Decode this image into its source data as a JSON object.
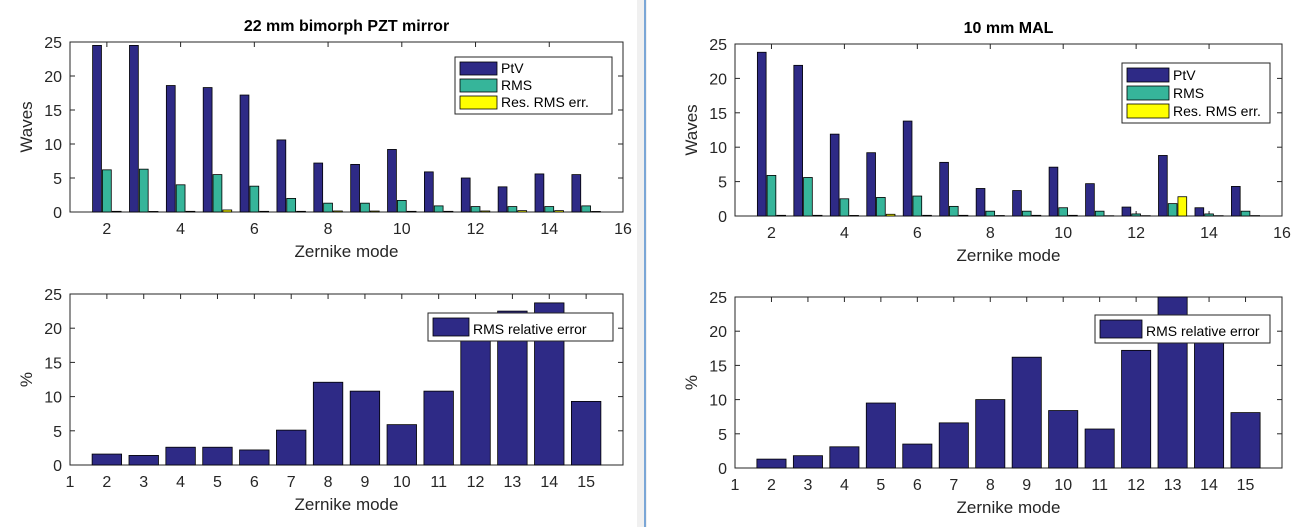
{
  "colors": {
    "ptv": "#2e2a86",
    "rms": "#36b59a",
    "res": "#ffff00",
    "rel": "#2e2a86"
  },
  "chart_data": [
    {
      "id": "left-top",
      "type": "bar",
      "title": "22 mm bimorph PZT mirror",
      "xlabel": "Zernike mode",
      "ylabel": "Waves",
      "xlim": [
        1,
        16
      ],
      "ylim": [
        0,
        25
      ],
      "xticks": [
        "2",
        "4",
        "6",
        "8",
        "10",
        "12",
        "14",
        "16"
      ],
      "yticks": [
        "0",
        "5",
        "10",
        "15",
        "20",
        "25"
      ],
      "legend_position": "top-right",
      "x": [
        2,
        3,
        4,
        5,
        6,
        7,
        8,
        9,
        10,
        11,
        12,
        13,
        14,
        15
      ],
      "series": [
        {
          "name": "PtV",
          "values": [
            24.5,
            24.5,
            18.6,
            18.3,
            17.2,
            10.6,
            7.2,
            7.0,
            9.2,
            5.9,
            5.0,
            3.7,
            5.6,
            5.5
          ]
        },
        {
          "name": "RMS",
          "values": [
            6.2,
            6.3,
            4.0,
            5.5,
            3.8,
            2.0,
            1.3,
            1.3,
            1.7,
            0.9,
            0.8,
            0.8,
            0.8,
            0.9
          ]
        },
        {
          "name": "Res. RMS err.",
          "values": [
            0.1,
            0.08,
            0.1,
            0.3,
            0.1,
            0.1,
            0.15,
            0.14,
            0.1,
            0.1,
            0.15,
            0.2,
            0.2,
            0.08
          ]
        }
      ]
    },
    {
      "id": "left-bottom",
      "type": "bar",
      "title": "",
      "xlabel": "Zernike mode",
      "ylabel": "%",
      "xlim": [
        1,
        16
      ],
      "ylim": [
        0,
        25
      ],
      "xticks": [
        "1",
        "2",
        "3",
        "4",
        "5",
        "6",
        "7",
        "8",
        "9",
        "10",
        "11",
        "12",
        "13",
        "14",
        "15"
      ],
      "yticks": [
        "0",
        "5",
        "10",
        "15",
        "20",
        "25"
      ],
      "legend_position": "top-right",
      "x": [
        2,
        3,
        4,
        5,
        6,
        7,
        8,
        9,
        10,
        11,
        12,
        13,
        14,
        15
      ],
      "series": [
        {
          "name": "RMS relative error",
          "values": [
            1.6,
            1.4,
            2.6,
            2.6,
            2.2,
            5.1,
            12.1,
            10.8,
            5.9,
            10.8,
            20.0,
            22.5,
            23.7,
            9.3
          ]
        }
      ]
    },
    {
      "id": "right-top",
      "type": "bar",
      "title": "10 mm MAL",
      "xlabel": "Zernike mode",
      "ylabel": "Waves",
      "xlim": [
        1,
        16
      ],
      "ylim": [
        0,
        25
      ],
      "xticks": [
        "2",
        "4",
        "6",
        "8",
        "10",
        "12",
        "14",
        "16"
      ],
      "yticks": [
        "0",
        "5",
        "10",
        "15",
        "20",
        "25"
      ],
      "legend_position": "top-right",
      "x": [
        2,
        3,
        4,
        5,
        6,
        7,
        8,
        9,
        10,
        11,
        12,
        13,
        14,
        15
      ],
      "series": [
        {
          "name": "PtV",
          "values": [
            23.8,
            21.9,
            11.9,
            9.2,
            13.8,
            7.8,
            4.0,
            3.7,
            7.1,
            4.7,
            1.3,
            8.8,
            1.2,
            4.3
          ]
        },
        {
          "name": "RMS",
          "values": [
            5.9,
            5.6,
            2.5,
            2.7,
            2.9,
            1.4,
            0.7,
            0.7,
            1.2,
            0.7,
            0.3,
            1.8,
            0.3,
            0.7
          ]
        },
        {
          "name": "Res. RMS err.",
          "values": [
            0.1,
            0.1,
            0.08,
            0.25,
            0.1,
            0.1,
            0.07,
            0.1,
            0.1,
            0.04,
            0.05,
            2.8,
            0.05,
            0.06
          ]
        }
      ]
    },
    {
      "id": "right-bottom",
      "type": "bar",
      "title": "",
      "xlabel": "Zernike mode",
      "ylabel": "%",
      "xlim": [
        1,
        16
      ],
      "ylim": [
        0,
        25
      ],
      "xticks": [
        "1",
        "2",
        "3",
        "4",
        "5",
        "6",
        "7",
        "8",
        "9",
        "10",
        "11",
        "12",
        "13",
        "14",
        "15"
      ],
      "yticks": [
        "0",
        "5",
        "10",
        "15",
        "20",
        "25"
      ],
      "legend_position": "top-right",
      "x": [
        2,
        3,
        4,
        5,
        6,
        7,
        8,
        9,
        10,
        11,
        12,
        13,
        14,
        15
      ],
      "series": [
        {
          "name": "RMS relative error",
          "values": [
            1.3,
            1.8,
            3.1,
            9.5,
            3.5,
            6.6,
            10.0,
            16.2,
            8.4,
            5.7,
            17.2,
            25.0,
            18.9,
            8.1
          ]
        }
      ]
    }
  ]
}
